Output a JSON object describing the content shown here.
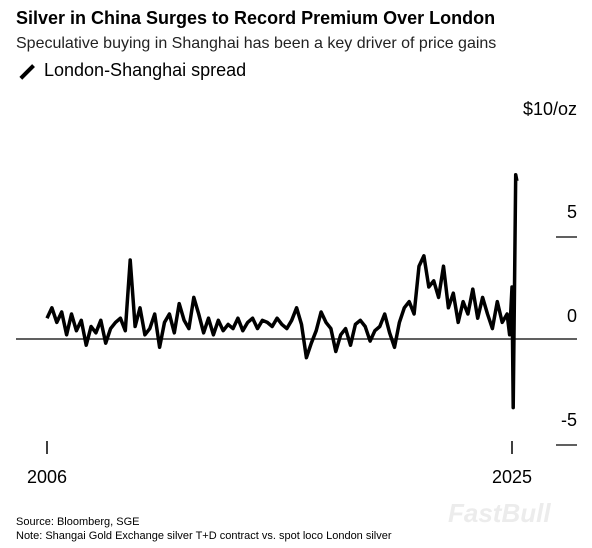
{
  "chart_data": {
    "type": "line",
    "title": "Silver in China Surges to Record Premium Over London",
    "subtitle": "Speculative buying in Shanghai has been a key driver of price gains",
    "xlabel": "",
    "ylabel": "",
    "x_tick_labels": [
      "2006",
      "2025"
    ],
    "x_ticks": [
      2006,
      2025
    ],
    "xlim": [
      2006,
      2025
    ],
    "y_tick_labels": [
      "$10/oz",
      "5",
      "0",
      "-5"
    ],
    "y_ticks": [
      10,
      5,
      0,
      -5
    ],
    "ylim": [
      -5,
      10
    ],
    "grid": false,
    "legend": "top-left",
    "series": [
      {
        "name": "London-Shanghai spread",
        "color": "#000000",
        "x": [
          2006.0,
          2006.2,
          2006.4,
          2006.6,
          2006.8,
          2007.0,
          2007.2,
          2007.4,
          2007.6,
          2007.8,
          2008.0,
          2008.2,
          2008.4,
          2008.6,
          2008.8,
          2009.0,
          2009.2,
          2009.4,
          2009.6,
          2009.8,
          2010.0,
          2010.2,
          2010.4,
          2010.6,
          2010.8,
          2011.0,
          2011.2,
          2011.4,
          2011.6,
          2011.8,
          2012.0,
          2012.2,
          2012.4,
          2012.6,
          2012.8,
          2013.0,
          2013.2,
          2013.4,
          2013.6,
          2013.8,
          2014.0,
          2014.2,
          2014.4,
          2014.6,
          2014.8,
          2015.0,
          2015.2,
          2015.4,
          2015.6,
          2015.8,
          2016.0,
          2016.2,
          2016.4,
          2016.6,
          2016.8,
          2017.0,
          2017.2,
          2017.4,
          2017.6,
          2017.8,
          2018.0,
          2018.2,
          2018.4,
          2018.6,
          2018.8,
          2019.0,
          2019.2,
          2019.4,
          2019.6,
          2019.8,
          2020.0,
          2020.2,
          2020.4,
          2020.6,
          2020.8,
          2021.0,
          2021.2,
          2021.4,
          2021.6,
          2021.8,
          2022.0,
          2022.2,
          2022.4,
          2022.6,
          2022.8,
          2023.0,
          2023.2,
          2023.4,
          2023.6,
          2023.8,
          2024.0,
          2024.2,
          2024.4,
          2024.6,
          2024.8,
          2024.9,
          2025.0,
          2025.05,
          2025.1,
          2025.15,
          2025.2
        ],
        "values": [
          1.0,
          1.5,
          0.8,
          1.3,
          0.2,
          1.2,
          0.4,
          0.9,
          -0.3,
          0.6,
          0.3,
          0.9,
          -0.2,
          0.5,
          0.8,
          1.0,
          0.4,
          3.8,
          0.6,
          1.5,
          0.2,
          0.5,
          1.2,
          -0.4,
          0.8,
          1.2,
          0.3,
          1.7,
          0.9,
          0.5,
          2.0,
          1.2,
          0.3,
          1.0,
          0.2,
          0.9,
          0.4,
          0.7,
          0.5,
          1.0,
          0.4,
          0.8,
          1.0,
          0.5,
          0.9,
          0.8,
          0.6,
          1.0,
          0.7,
          0.5,
          0.9,
          1.5,
          0.7,
          -0.9,
          -0.2,
          0.4,
          1.3,
          0.8,
          0.5,
          -0.6,
          0.2,
          0.5,
          -0.3,
          0.7,
          0.9,
          0.6,
          -0.1,
          0.4,
          0.6,
          1.2,
          0.3,
          -0.4,
          0.8,
          1.5,
          1.8,
          1.2,
          3.5,
          4.0,
          2.5,
          2.8,
          2.0,
          3.5,
          1.5,
          2.2,
          0.8,
          1.8,
          1.2,
          2.4,
          1.0,
          2.0,
          1.2,
          0.5,
          1.8,
          0.8,
          1.2,
          0.2,
          2.5,
          -3.3,
          2.0,
          7.9,
          7.6
        ]
      }
    ]
  },
  "legend_label": "London-Shanghai spread",
  "source": "Source: Bloomberg, SGE",
  "note": "Note: Shangai Gold Exchange silver T+D contract vs. spot loco London silver",
  "watermark": "FastBull"
}
